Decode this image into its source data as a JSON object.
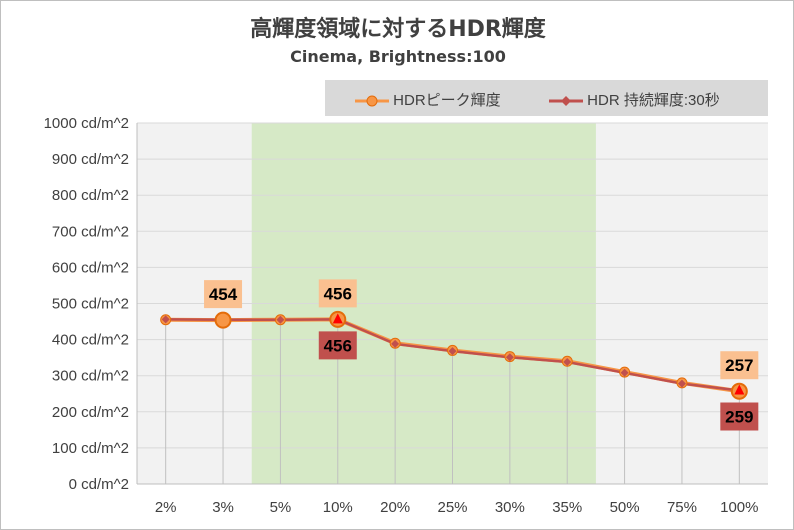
{
  "chart_data": {
    "type": "line",
    "title": "高輝度領域に対するHDR輝度",
    "subtitle": "Cinema, Brightness:100",
    "categories": [
      "2%",
      "3%",
      "5%",
      "10%",
      "20%",
      "25%",
      "30%",
      "35%",
      "50%",
      "75%",
      "100%"
    ],
    "y_tick_labels": [
      "0 cd/m^2",
      "100 cd/m^2",
      "200 cd/m^2",
      "300 cd/m^2",
      "400 cd/m^2",
      "500 cd/m^2",
      "600 cd/m^2",
      "700 cd/m^2",
      "800 cd/m^2",
      "900 cd/m^2",
      "1000 cd/m^2"
    ],
    "ylim": [
      0,
      1000
    ],
    "y_step": 100,
    "grid": true,
    "legend_position": "top-right",
    "highlight_range": [
      "5%",
      "50%"
    ],
    "highlight_color": "#d6e9c6",
    "series": [
      {
        "name": "HDRピーク輝度",
        "color": "#f79646",
        "marker": "circle",
        "values": [
          455,
          454,
          455,
          456,
          390,
          370,
          353,
          340,
          310,
          280,
          257
        ],
        "labels": [
          {
            "category": "3%",
            "text": "454"
          },
          {
            "category": "10%",
            "text": "456"
          },
          {
            "category": "100%",
            "text": "257"
          }
        ],
        "label_position": "above",
        "label_bg": "#fac090"
      },
      {
        "name": "HDR 持続輝度:30秒",
        "color": "#c0504d",
        "marker": "diamond",
        "values": [
          456,
          455,
          455,
          456,
          388,
          368,
          351,
          338,
          308,
          278,
          259
        ],
        "labels": [
          {
            "category": "10%",
            "text": "456"
          },
          {
            "category": "100%",
            "text": "259"
          }
        ],
        "label_position": "below",
        "label_bg": "#c0504d"
      }
    ]
  }
}
